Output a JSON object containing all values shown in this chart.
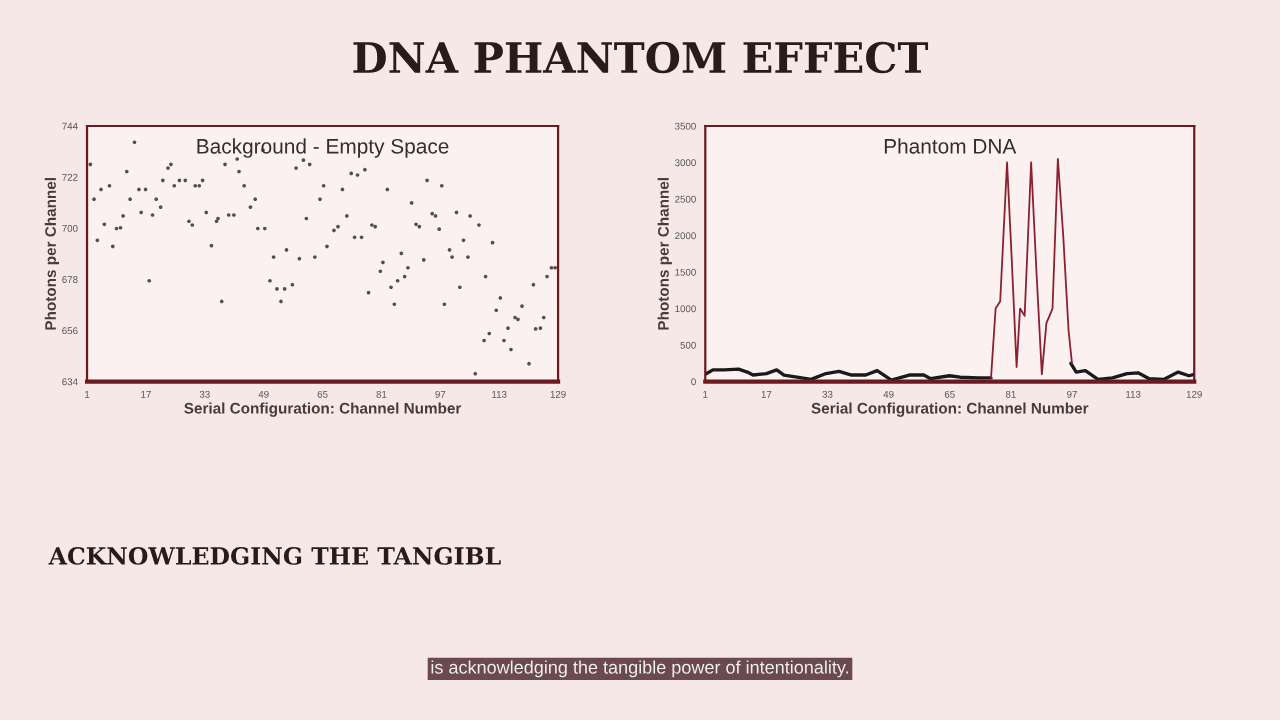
{
  "chart_data": [
    {
      "type": "scatter",
      "title": "Background - Empty Space",
      "xlabel": "Serial Configuration: Channel Number",
      "ylabel": "Photons per Channel",
      "marker": "circle",
      "grid": false,
      "xlim": [
        1,
        129
      ],
      "xticks": [
        1,
        17,
        33,
        49,
        65,
        81,
        97,
        113,
        129
      ],
      "ylim": [
        634,
        744
      ],
      "yticks": [
        634,
        656,
        678,
        700,
        722,
        744
      ],
      "series": [
        {
          "color": "#5a4a4a",
          "x": [
            1.9,
            2.9,
            3.8,
            4.8,
            5.7,
            7.1,
            8,
            9,
            10.1,
            10.8,
            11.8,
            12.7,
            13.9,
            15.1,
            15.7,
            16.9,
            17.9,
            18.8,
            19.8,
            21,
            21.6,
            23,
            23.8,
            24.7,
            26.1,
            27.7,
            28.7,
            29.6,
            30.4,
            31.5,
            32.4,
            33.4,
            34.8,
            36.2,
            36.6,
            37.6,
            38.5,
            39.5,
            40.9,
            41.8,
            42.3,
            43.7,
            45.4,
            46.7,
            47.4,
            48.8,
            49.3,
            50.7,
            51.7,
            52.6,
            53.7,
            54.7,
            55.2,
            56.8,
            57.8,
            58.7,
            59.8,
            60.6,
            61.5,
            62.9,
            64.3,
            65.3,
            66.2,
            68.1,
            69.2,
            70.4,
            71.6,
            72.8,
            73.7,
            74.5,
            75.6,
            76.5,
            77.5,
            78.4,
            79.3,
            80.7,
            81.4,
            82.6,
            83.6,
            84.5,
            85.4,
            86.4,
            87.3,
            88.2,
            89.2,
            90.4,
            91.3,
            92.5,
            93.4,
            94.8,
            95.7,
            96.7,
            97.4,
            98.1,
            99.5,
            100.2,
            101.4,
            102.3,
            103.3,
            104.5,
            105.1,
            106.5,
            107.5,
            108.9,
            109.3,
            110.3,
            111.2,
            112.2,
            113.3,
            114.3,
            115.4,
            116.2,
            117.3,
            118.1,
            119.2,
            121.1,
            122.3,
            122.9,
            124.2,
            125.1,
            126,
            127.2,
            128.2
          ],
          "values": [
            727.5,
            712.5,
            694.8,
            716.7,
            701.7,
            718.3,
            692.2,
            699.9,
            700.2,
            705.3,
            724.4,
            712.5,
            737,
            716.7,
            706.8,
            716.7,
            677.4,
            705.7,
            712.5,
            709.1,
            720.6,
            725.9,
            727.5,
            718.3,
            720.6,
            720.6,
            703,
            701.4,
            718.3,
            718.3,
            720.6,
            706.8,
            692.5,
            703,
            704.2,
            668.5,
            727.5,
            705.7,
            705.7,
            729.8,
            724.4,
            718.3,
            709.1,
            712.5,
            699.9,
            733.6,
            699.9,
            677.4,
            687.6,
            673.9,
            668.5,
            673.9,
            690.7,
            675.7,
            725.9,
            686.9,
            729.3,
            704.2,
            727.5,
            687.6,
            712.5,
            718.3,
            692.2,
            699.1,
            700.7,
            716.7,
            705.3,
            723.6,
            696.1,
            722.9,
            696.1,
            725.2,
            672.3,
            701.4,
            700.7,
            681.5,
            685.3,
            716.7,
            674.6,
            667.3,
            677.4,
            689.2,
            679.2,
            683,
            710.9,
            701.7,
            700.7,
            686.4,
            720.6,
            706.3,
            705.3,
            699.6,
            718.3,
            667.3,
            690.7,
            687.6,
            706.8,
            674.6,
            694.8,
            687.6,
            705.3,
            637.4,
            701.4,
            651.7,
            679.2,
            654.7,
            693.8,
            664.7,
            670,
            651.7,
            657,
            647.8,
            661.6,
            660.8,
            666.5,
            641.7,
            675.7,
            656.7,
            657,
            661.6,
            679.2,
            683,
            683
          ]
        }
      ]
    },
    {
      "type": "line",
      "title": "Phantom DNA",
      "xlabel": "Serial Configuration: Channel Number",
      "ylabel": "Photons per Channel",
      "grid": false,
      "xlim": [
        1,
        129
      ],
      "xticks": [
        1,
        17,
        33,
        49,
        65,
        81,
        97,
        113,
        129
      ],
      "ylim": [
        0,
        3500
      ],
      "yticks": [
        0,
        500,
        1000,
        1500,
        2000,
        2500,
        3000,
        3500
      ],
      "series": [
        {
          "color": "#1a1a1a",
          "x": [
            1,
            3,
            6,
            9.7,
            12,
            13.5,
            17,
            19.7,
            21.6,
            25,
            28.7,
            32.6,
            36,
            39.3,
            43,
            46,
            49.7,
            54.4,
            58.2,
            60,
            64.9,
            67.7,
            72.5,
            75.8,
            86,
            96.7,
            98.1,
            100.5,
            103.8,
            107.6,
            111.4,
            114.3,
            117.2,
            121,
            124.8,
            127.6,
            129
          ],
          "values": [
            100,
            160,
            160,
            170,
            130,
            90,
            110,
            160,
            90,
            60,
            30,
            110,
            140,
            90,
            90,
            150,
            20,
            90,
            90,
            40,
            80,
            60,
            50,
            50,
            null,
            250,
            130,
            150,
            30,
            50,
            110,
            120,
            40,
            30,
            130,
            80,
            100
          ]
        },
        {
          "color": "#8b2030",
          "x": [
            75.8,
            77,
            78.2,
            80,
            81.2,
            82.5,
            83.4,
            84.6,
            86.3,
            87.7,
            89.1,
            90.3,
            91.9,
            93.3,
            94.7,
            96.1,
            97
          ],
          "values": [
            50,
            1000,
            1100,
            3000,
            1700,
            200,
            1000,
            900,
            3000,
            1500,
            100,
            800,
            1000,
            3050,
            2000,
            700,
            250
          ]
        }
      ]
    },
    {
      "type": "other",
      "title": "DNA PHANTOM EFFECT",
      "annotations": [
        "ACKNOWLEDGING THE TANGIBL",
        "is acknowledging the tangible power of intentionality."
      ]
    }
  ]
}
